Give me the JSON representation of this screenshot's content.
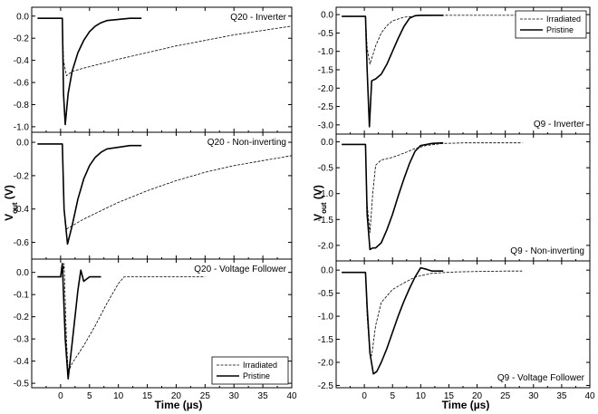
{
  "figure": {
    "y_label_main": "V",
    "y_label_sub": "out",
    "y_label_unit": " (V)",
    "x_label": "Time (µs)"
  },
  "legend": {
    "irradiated": "Irradiated",
    "pristine": "Pristine"
  },
  "chart_data": [
    {
      "type": "line",
      "id": "q20-inverter",
      "title": "Q20 - Inverter",
      "xlim": [
        -5,
        40
      ],
      "ylim": [
        -1.05,
        0.08
      ],
      "xticks": [
        0,
        5,
        10,
        15,
        20,
        25,
        30,
        35,
        40
      ],
      "yticks": [
        0.0,
        -0.2,
        -0.4,
        -0.6,
        -0.8,
        -1.0
      ],
      "ytick_labels": [
        "0.0",
        "-0.2",
        "-0.4",
        "-0.6",
        "-0.8",
        "-1.0"
      ],
      "series": [
        {
          "name": "Irradiated",
          "style": "thin",
          "x": [
            -4,
            0.3,
            0.5,
            1,
            2,
            4,
            7,
            10,
            15,
            20,
            25,
            30,
            35,
            40
          ],
          "y": [
            -0.02,
            -0.02,
            -0.4,
            -0.54,
            -0.5,
            -0.47,
            -0.43,
            -0.39,
            -0.33,
            -0.27,
            -0.22,
            -0.17,
            -0.13,
            -0.09
          ]
        },
        {
          "name": "Pristine",
          "style": "thick",
          "x": [
            -4,
            0.3,
            0.5,
            0.8,
            1.3,
            2,
            3,
            4,
            5,
            6,
            7,
            8,
            10,
            12,
            14
          ],
          "y": [
            -0.02,
            -0.02,
            -0.7,
            -0.98,
            -0.7,
            -0.5,
            -0.33,
            -0.22,
            -0.14,
            -0.09,
            -0.06,
            -0.04,
            -0.03,
            -0.02,
            -0.02
          ]
        }
      ]
    },
    {
      "type": "line",
      "id": "q20-noninverting",
      "title": "Q20 - Non-inverting",
      "xlim": [
        -5,
        40
      ],
      "ylim": [
        -0.7,
        0.06
      ],
      "xticks": [
        0,
        5,
        10,
        15,
        20,
        25,
        30,
        35,
        40
      ],
      "yticks": [
        0.0,
        -0.2,
        -0.4,
        -0.6
      ],
      "ytick_labels": [
        "0.0",
        "-0.2",
        "-0.4",
        "-0.6"
      ],
      "series": [
        {
          "name": "Irradiated",
          "style": "thin",
          "x": [
            -4,
            0.3,
            0.6,
            1,
            2,
            4,
            7,
            10,
            15,
            20,
            25,
            30,
            35,
            40
          ],
          "y": [
            -0.01,
            -0.01,
            -0.4,
            -0.52,
            -0.5,
            -0.46,
            -0.41,
            -0.36,
            -0.29,
            -0.23,
            -0.18,
            -0.14,
            -0.11,
            -0.08
          ]
        },
        {
          "name": "Pristine",
          "style": "thick",
          "x": [
            -4,
            0.3,
            0.6,
            1.2,
            2,
            3,
            4,
            5,
            6,
            7,
            8,
            10,
            12,
            14
          ],
          "y": [
            -0.01,
            -0.01,
            -0.4,
            -0.61,
            -0.5,
            -0.34,
            -0.22,
            -0.14,
            -0.09,
            -0.06,
            -0.04,
            -0.03,
            -0.02,
            -0.02
          ]
        }
      ]
    },
    {
      "type": "line",
      "id": "q20-voltagefollower",
      "title": "Q20 - Voltage Follower",
      "xlim": [
        -5,
        40
      ],
      "ylim": [
        -0.52,
        0.06
      ],
      "xticks": [
        0,
        5,
        10,
        15,
        20,
        25,
        30,
        35,
        40
      ],
      "xtick_labels": [
        "0",
        "5",
        "10",
        "15",
        "20",
        "25",
        "30",
        "35",
        "40"
      ],
      "yticks": [
        0.0,
        -0.1,
        -0.2,
        -0.3,
        -0.4,
        -0.5
      ],
      "ytick_labels": [
        "0.0",
        "-0.1",
        "-0.2",
        "-0.3",
        "-0.4",
        "-0.5"
      ],
      "legend": {
        "position": "bottom-right"
      },
      "series": [
        {
          "name": "Irradiated",
          "style": "thin",
          "x": [
            -4,
            0.3,
            0.6,
            1,
            1.3,
            2,
            4,
            6,
            8,
            10,
            11,
            13,
            18,
            25
          ],
          "y": [
            -0.02,
            -0.02,
            0.04,
            -0.3,
            -0.45,
            -0.41,
            -0.33,
            -0.24,
            -0.14,
            -0.05,
            -0.02,
            -0.02,
            -0.02,
            -0.02
          ]
        },
        {
          "name": "Pristine",
          "style": "thick",
          "x": [
            -4,
            0,
            0.3,
            0.8,
            1.3,
            2,
            3,
            3.5,
            4,
            5,
            6,
            7
          ],
          "y": [
            -0.02,
            -0.02,
            0.04,
            -0.3,
            -0.48,
            -0.32,
            -0.08,
            0.01,
            -0.04,
            -0.02,
            -0.02,
            -0.02
          ]
        }
      ]
    },
    {
      "type": "line",
      "id": "q9-inverter",
      "title": "Q9 - Inverter",
      "xlim": [
        -5,
        40
      ],
      "ylim": [
        -3.25,
        0.2
      ],
      "xticks": [
        0,
        5,
        10,
        15,
        20,
        25,
        30,
        35,
        40
      ],
      "yticks": [
        0.0,
        -0.5,
        -1.0,
        -1.5,
        -2.0,
        -2.5,
        -3.0
      ],
      "ytick_labels": [
        "0.0",
        "-0.5",
        "-1.0",
        "-1.5",
        "-2.0",
        "-2.5",
        "-3.0"
      ],
      "legend": {
        "position": "top-right"
      },
      "series": [
        {
          "name": "Irradiated",
          "style": "thin",
          "x": [
            -4,
            0.2,
            0.5,
            1,
            2,
            3,
            4,
            5,
            7,
            10,
            15,
            20,
            25,
            28
          ],
          "y": [
            -0.05,
            -0.05,
            -0.9,
            -1.35,
            -0.85,
            -0.5,
            -0.3,
            -0.17,
            -0.07,
            -0.03,
            -0.02,
            -0.02,
            -0.02,
            -0.02
          ]
        },
        {
          "name": "Pristine",
          "style": "thick",
          "x": [
            -4,
            0.2,
            0.5,
            0.9,
            1.3,
            2,
            3,
            4,
            5,
            6,
            7,
            8,
            9,
            10,
            12,
            14
          ],
          "y": [
            -0.05,
            -0.05,
            -1.5,
            -3.05,
            -1.8,
            -1.75,
            -1.62,
            -1.35,
            -1.0,
            -0.65,
            -0.33,
            -0.1,
            -0.03,
            -0.02,
            -0.02,
            -0.02
          ]
        }
      ]
    },
    {
      "type": "line",
      "id": "q9-noninverting",
      "title": "Q9 - Non-inverting",
      "xlim": [
        -5,
        40
      ],
      "ylim": [
        -2.3,
        0.15
      ],
      "xticks": [
        0,
        5,
        10,
        15,
        20,
        25,
        30,
        35,
        40
      ],
      "yticks": [
        0.0,
        -0.5,
        -1.0,
        -1.5,
        -2.0
      ],
      "ytick_labels": [
        "0.0",
        "-0.5",
        "-1.0",
        "-1.5",
        "-2.0"
      ],
      "series": [
        {
          "name": "Irradiated",
          "style": "thin",
          "x": [
            -4,
            0.2,
            0.5,
            1,
            1.5,
            2,
            3,
            5,
            7,
            9,
            11,
            14,
            18,
            22,
            26,
            28
          ],
          "y": [
            -0.05,
            -0.05,
            -1.2,
            -1.75,
            -1.0,
            -0.45,
            -0.35,
            -0.3,
            -0.22,
            -0.13,
            -0.07,
            -0.03,
            -0.02,
            -0.02,
            -0.02,
            -0.02
          ]
        },
        {
          "name": "Pristine",
          "style": "thick",
          "x": [
            -4,
            0.2,
            0.5,
            1,
            1.5,
            2,
            3,
            4,
            5,
            6,
            7,
            8,
            9,
            10,
            12,
            14
          ],
          "y": [
            -0.05,
            -0.05,
            -1.4,
            -2.08,
            -2.05,
            -2.05,
            -1.95,
            -1.7,
            -1.4,
            -1.05,
            -0.72,
            -0.42,
            -0.18,
            -0.07,
            -0.03,
            -0.02
          ]
        }
      ]
    },
    {
      "type": "line",
      "id": "q9-voltagefollower",
      "title": "Q9 - Voltage Follower",
      "xlim": [
        -5,
        40
      ],
      "ylim": [
        -2.55,
        0.2
      ],
      "xticks": [
        0,
        5,
        10,
        15,
        20,
        25,
        30,
        35,
        40
      ],
      "xtick_labels": [
        "0",
        "5",
        "10",
        "15",
        "20",
        "25",
        "30",
        "35",
        "40"
      ],
      "yticks": [
        0.0,
        -0.5,
        -1.0,
        -1.5,
        -2.0,
        -2.5
      ],
      "ytick_labels": [
        "0.0",
        "-0.5",
        "-1.0",
        "-1.5",
        "-2.0",
        "-2.5"
      ],
      "series": [
        {
          "name": "Irradiated",
          "style": "thin",
          "x": [
            -4,
            0.2,
            0.5,
            1,
            1.3,
            2,
            3,
            5,
            7,
            9,
            12,
            16,
            20,
            25,
            28
          ],
          "y": [
            -0.05,
            -0.05,
            -1.0,
            -1.82,
            -1.85,
            -1.2,
            -0.7,
            -0.42,
            -0.28,
            -0.15,
            -0.07,
            -0.04,
            -0.03,
            -0.02,
            -0.02
          ]
        },
        {
          "name": "Pristine",
          "style": "thick",
          "x": [
            -4,
            0.2,
            0.5,
            1,
            1.6,
            2.2,
            3,
            4,
            5,
            6,
            7,
            8,
            9,
            10,
            11,
            12,
            14
          ],
          "y": [
            -0.05,
            -0.05,
            -0.8,
            -1.8,
            -2.25,
            -2.2,
            -2.0,
            -1.7,
            -1.35,
            -1.0,
            -0.68,
            -0.4,
            -0.15,
            0.05,
            0.02,
            -0.02,
            -0.02
          ]
        }
      ]
    }
  ]
}
